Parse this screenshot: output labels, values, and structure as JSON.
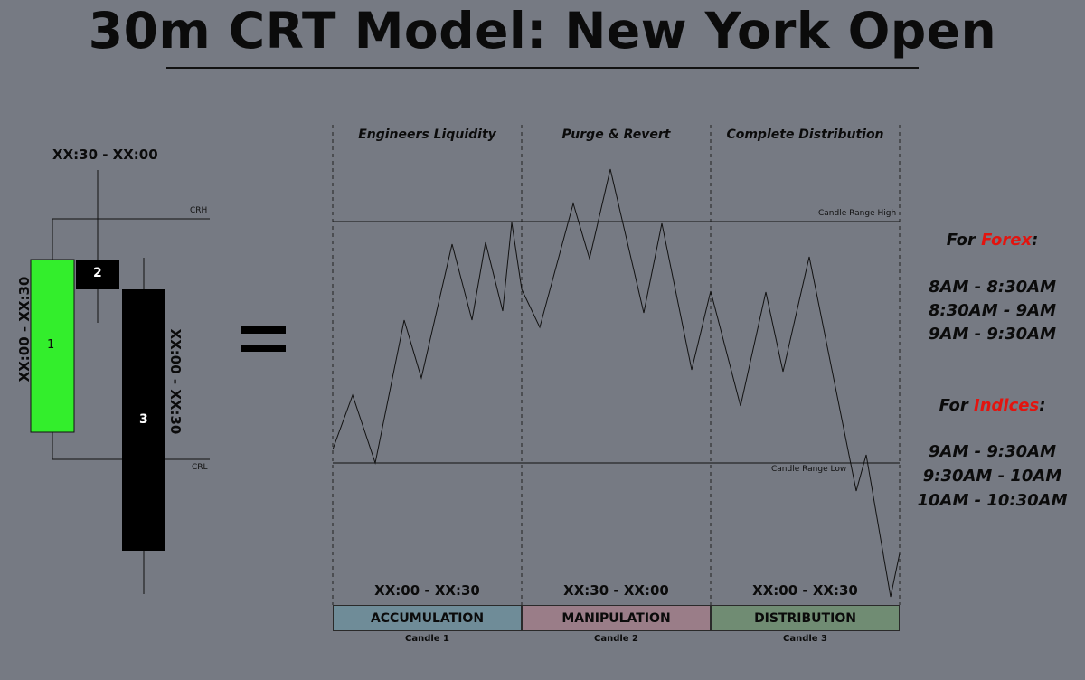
{
  "title": "30m CRT Model: New York Open",
  "left_diagram": {
    "top_time": "XX:30 - XX:00",
    "crh": "CRH",
    "crl": "CRL",
    "candle1_label": "1",
    "candle2_label": "2",
    "candle3_label": "3",
    "left_vertical_time": "XX:00 - XX:30",
    "right_vertical_time": "XX:00 - XX:30",
    "candle1_color": "#33ee2c",
    "candle_dark_color": "#000000"
  },
  "equals_sign": "=",
  "chart": {
    "phases": [
      "Engineers Liquidity",
      "Purge & Revert",
      "Complete Distribution"
    ],
    "candle_range_high": "Candle Range High",
    "candle_range_low": "Candle Range Low",
    "bottom_times": [
      "XX:00 - XX:30",
      "XX:30 - XX:00",
      "XX:00 - XX:30"
    ],
    "bands": [
      {
        "label": "ACCUMULATION",
        "color": "#6f8c98"
      },
      {
        "label": "MANIPULATION",
        "color": "#9a7d88"
      },
      {
        "label": "DISTRIBUTION",
        "color": "#708c73"
      }
    ],
    "candles": [
      "Candle 1",
      "Candle 2",
      "Candle 3"
    ]
  },
  "forex": {
    "heading_prefix": "For ",
    "heading_highlight": "Forex",
    "heading_suffix": ":",
    "times": [
      "8AM - 8:30AM",
      "8:30AM - 9AM",
      "9AM - 9:30AM"
    ]
  },
  "indices": {
    "heading_prefix": "For ",
    "heading_highlight": "Indices",
    "heading_suffix": ":",
    "times": [
      "9AM - 9:30AM",
      "9:30AM - 10AM",
      "10AM - 10:30AM"
    ]
  },
  "highlight_color": "#e3140f"
}
